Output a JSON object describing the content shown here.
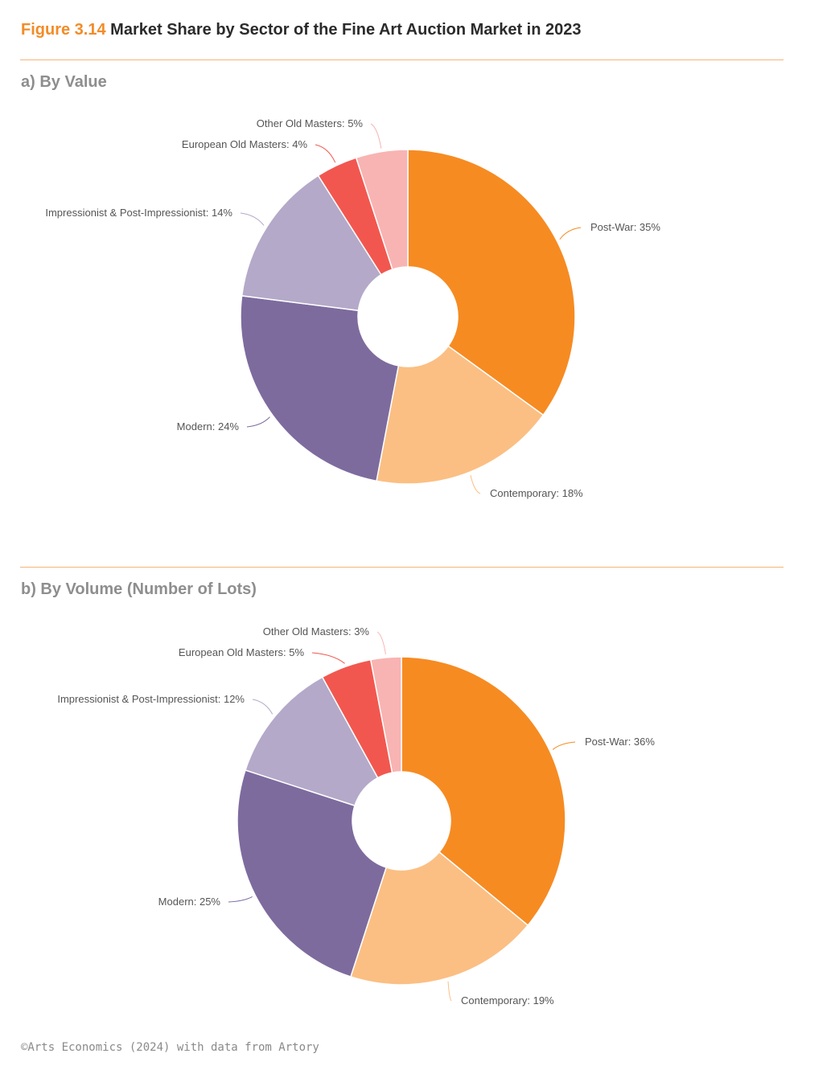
{
  "header": {
    "figure_number": "Figure 3.14",
    "title": "Market Share by Sector of the Fine Art Auction Market in 2023"
  },
  "sections": {
    "a": "a) By Value",
    "b": "b) By Volume (Number of Lots)"
  },
  "source": "©Arts Economics (2024) with data from Artory",
  "colors": {
    "accent": "#f28c28",
    "rule": "#f5b47a",
    "Post-War": "#f68b22",
    "Contemporary": "#fbbf83",
    "Modern": "#7d6b9e",
    "Impressionist & Post-Impressionist": "#b4a9c9",
    "European Old Masters": "#f2574f",
    "Other Old Masters": "#f8b4b2"
  },
  "chart_data": [
    {
      "type": "pie",
      "donut": true,
      "title": "a) By Value",
      "start": "12 o'clock, clockwise",
      "categories": [
        "Post-War",
        "Contemporary",
        "Modern",
        "Impressionist & Post-Impressionist",
        "European Old Masters",
        "Other Old Masters"
      ],
      "values": [
        35,
        18,
        24,
        14,
        4,
        5
      ],
      "labels": [
        "Post-War: 35%",
        "Contemporary: 18%",
        "Modern: 24%",
        "Impressionist & Post-Impressionist: 14%",
        "European Old Masters: 4%",
        "Other Old Masters: 5%"
      ],
      "unit": "%"
    },
    {
      "type": "pie",
      "donut": true,
      "title": "b) By Volume (Number of Lots)",
      "start": "12 o'clock, clockwise",
      "categories": [
        "Post-War",
        "Contemporary",
        "Modern",
        "Impressionist & Post-Impressionist",
        "European Old Masters",
        "Other Old Masters"
      ],
      "values": [
        36,
        19,
        25,
        12,
        5,
        3
      ],
      "labels": [
        "Post-War: 36%",
        "Contemporary: 19%",
        "Modern: 25%",
        "Impressionist & Post-Impressionist: 12%",
        "European Old Masters: 5%",
        "Other Old Masters: 3%"
      ],
      "unit": "%"
    }
  ]
}
